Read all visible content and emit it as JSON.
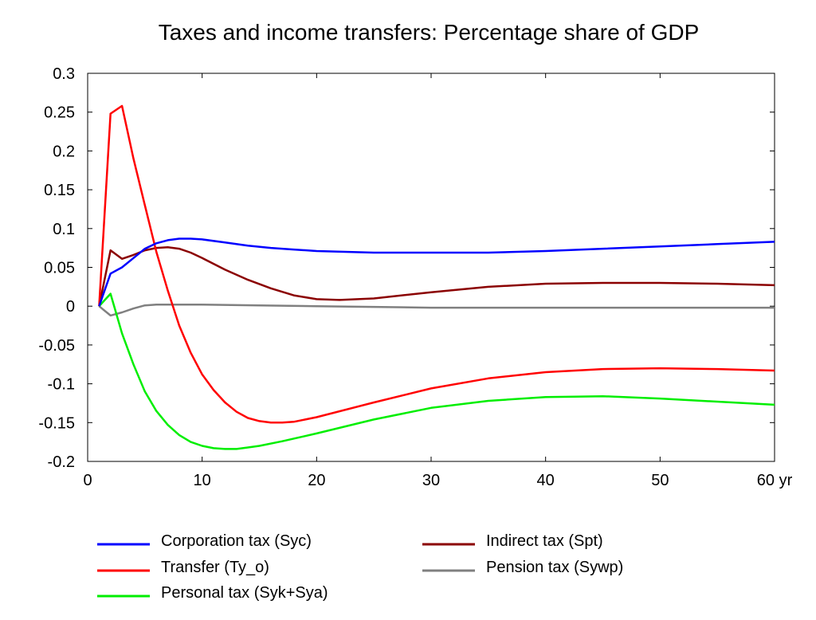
{
  "chart_data": {
    "type": "line",
    "title": "Taxes and income transfers: Percentage share of GDP",
    "xlabel": "",
    "ylabel": "",
    "xlim": [
      0,
      60
    ],
    "ylim": [
      -0.2,
      0.3
    ],
    "x_ticks": [
      0,
      10,
      20,
      30,
      40,
      50,
      60
    ],
    "x_tick_labels": [
      "0",
      "10",
      "20",
      "30",
      "40",
      "50",
      "60 yr"
    ],
    "y_ticks": [
      0.3,
      0.25,
      0.2,
      0.15,
      0.1,
      0.05,
      0,
      -0.05,
      -0.1,
      -0.15,
      -0.2
    ],
    "y_tick_labels": [
      "0.3",
      "0.25",
      "0.2",
      "0.15",
      "0.1",
      "0.05",
      "0",
      "-0.05",
      "-0.1",
      "-0.15",
      "-0.2"
    ],
    "grid": false,
    "legend_position": "bottom",
    "series": [
      {
        "name": "Corporation tax (Syc)",
        "color": "#0000ff",
        "x": [
          1,
          2,
          3,
          4,
          5,
          6,
          7,
          8,
          9,
          10,
          12,
          14,
          16,
          18,
          20,
          25,
          30,
          35,
          40,
          45,
          50,
          55,
          60
        ],
        "values": [
          0,
          0.042,
          0.05,
          0.062,
          0.074,
          0.081,
          0.085,
          0.087,
          0.087,
          0.086,
          0.082,
          0.078,
          0.075,
          0.073,
          0.071,
          0.069,
          0.069,
          0.069,
          0.071,
          0.074,
          0.077,
          0.08,
          0.083
        ]
      },
      {
        "name": "Transfer (Ty_o)",
        "color": "#ff0000",
        "x": [
          1,
          2,
          3,
          4,
          5,
          6,
          7,
          8,
          9,
          10,
          11,
          12,
          13,
          14,
          15,
          16,
          17,
          18,
          20,
          25,
          30,
          35,
          40,
          45,
          50,
          55,
          60
        ],
        "values": [
          0,
          0.248,
          0.258,
          0.19,
          0.13,
          0.07,
          0.02,
          -0.025,
          -0.06,
          -0.088,
          -0.108,
          -0.124,
          -0.136,
          -0.144,
          -0.148,
          -0.15,
          -0.15,
          -0.149,
          -0.143,
          -0.124,
          -0.106,
          -0.093,
          -0.085,
          -0.081,
          -0.08,
          -0.081,
          -0.083
        ]
      },
      {
        "name": "Personal tax (Syk+Sya)",
        "color": "#00ee00",
        "x": [
          1,
          2,
          3,
          4,
          5,
          6,
          7,
          8,
          9,
          10,
          11,
          12,
          13,
          14,
          15,
          17,
          20,
          25,
          30,
          35,
          40,
          45,
          50,
          55,
          60
        ],
        "values": [
          0,
          0.016,
          -0.035,
          -0.075,
          -0.11,
          -0.135,
          -0.153,
          -0.166,
          -0.175,
          -0.18,
          -0.183,
          -0.184,
          -0.184,
          -0.182,
          -0.18,
          -0.174,
          -0.164,
          -0.146,
          -0.131,
          -0.122,
          -0.117,
          -0.116,
          -0.119,
          -0.123,
          -0.127
        ]
      },
      {
        "name": "Indirect tax (Spt)",
        "color": "#8b0000",
        "x": [
          1,
          2,
          3,
          4,
          5,
          6,
          7,
          8,
          9,
          10,
          12,
          14,
          16,
          18,
          20,
          22,
          25,
          30,
          35,
          40,
          45,
          50,
          55,
          60
        ],
        "values": [
          0,
          0.072,
          0.061,
          0.066,
          0.072,
          0.075,
          0.076,
          0.074,
          0.069,
          0.062,
          0.047,
          0.034,
          0.023,
          0.014,
          0.009,
          0.008,
          0.01,
          0.018,
          0.025,
          0.029,
          0.03,
          0.03,
          0.029,
          0.027
        ]
      },
      {
        "name": "Pension tax (Sywp)",
        "color": "#808080",
        "x": [
          1,
          2,
          3,
          4,
          5,
          6,
          7,
          8,
          10,
          15,
          20,
          30,
          40,
          50,
          60
        ],
        "values": [
          0,
          -0.012,
          -0.008,
          -0.003,
          0.001,
          0.002,
          0.002,
          0.002,
          0.002,
          0.001,
          0,
          -0.002,
          -0.002,
          -0.002,
          -0.002
        ]
      }
    ]
  }
}
